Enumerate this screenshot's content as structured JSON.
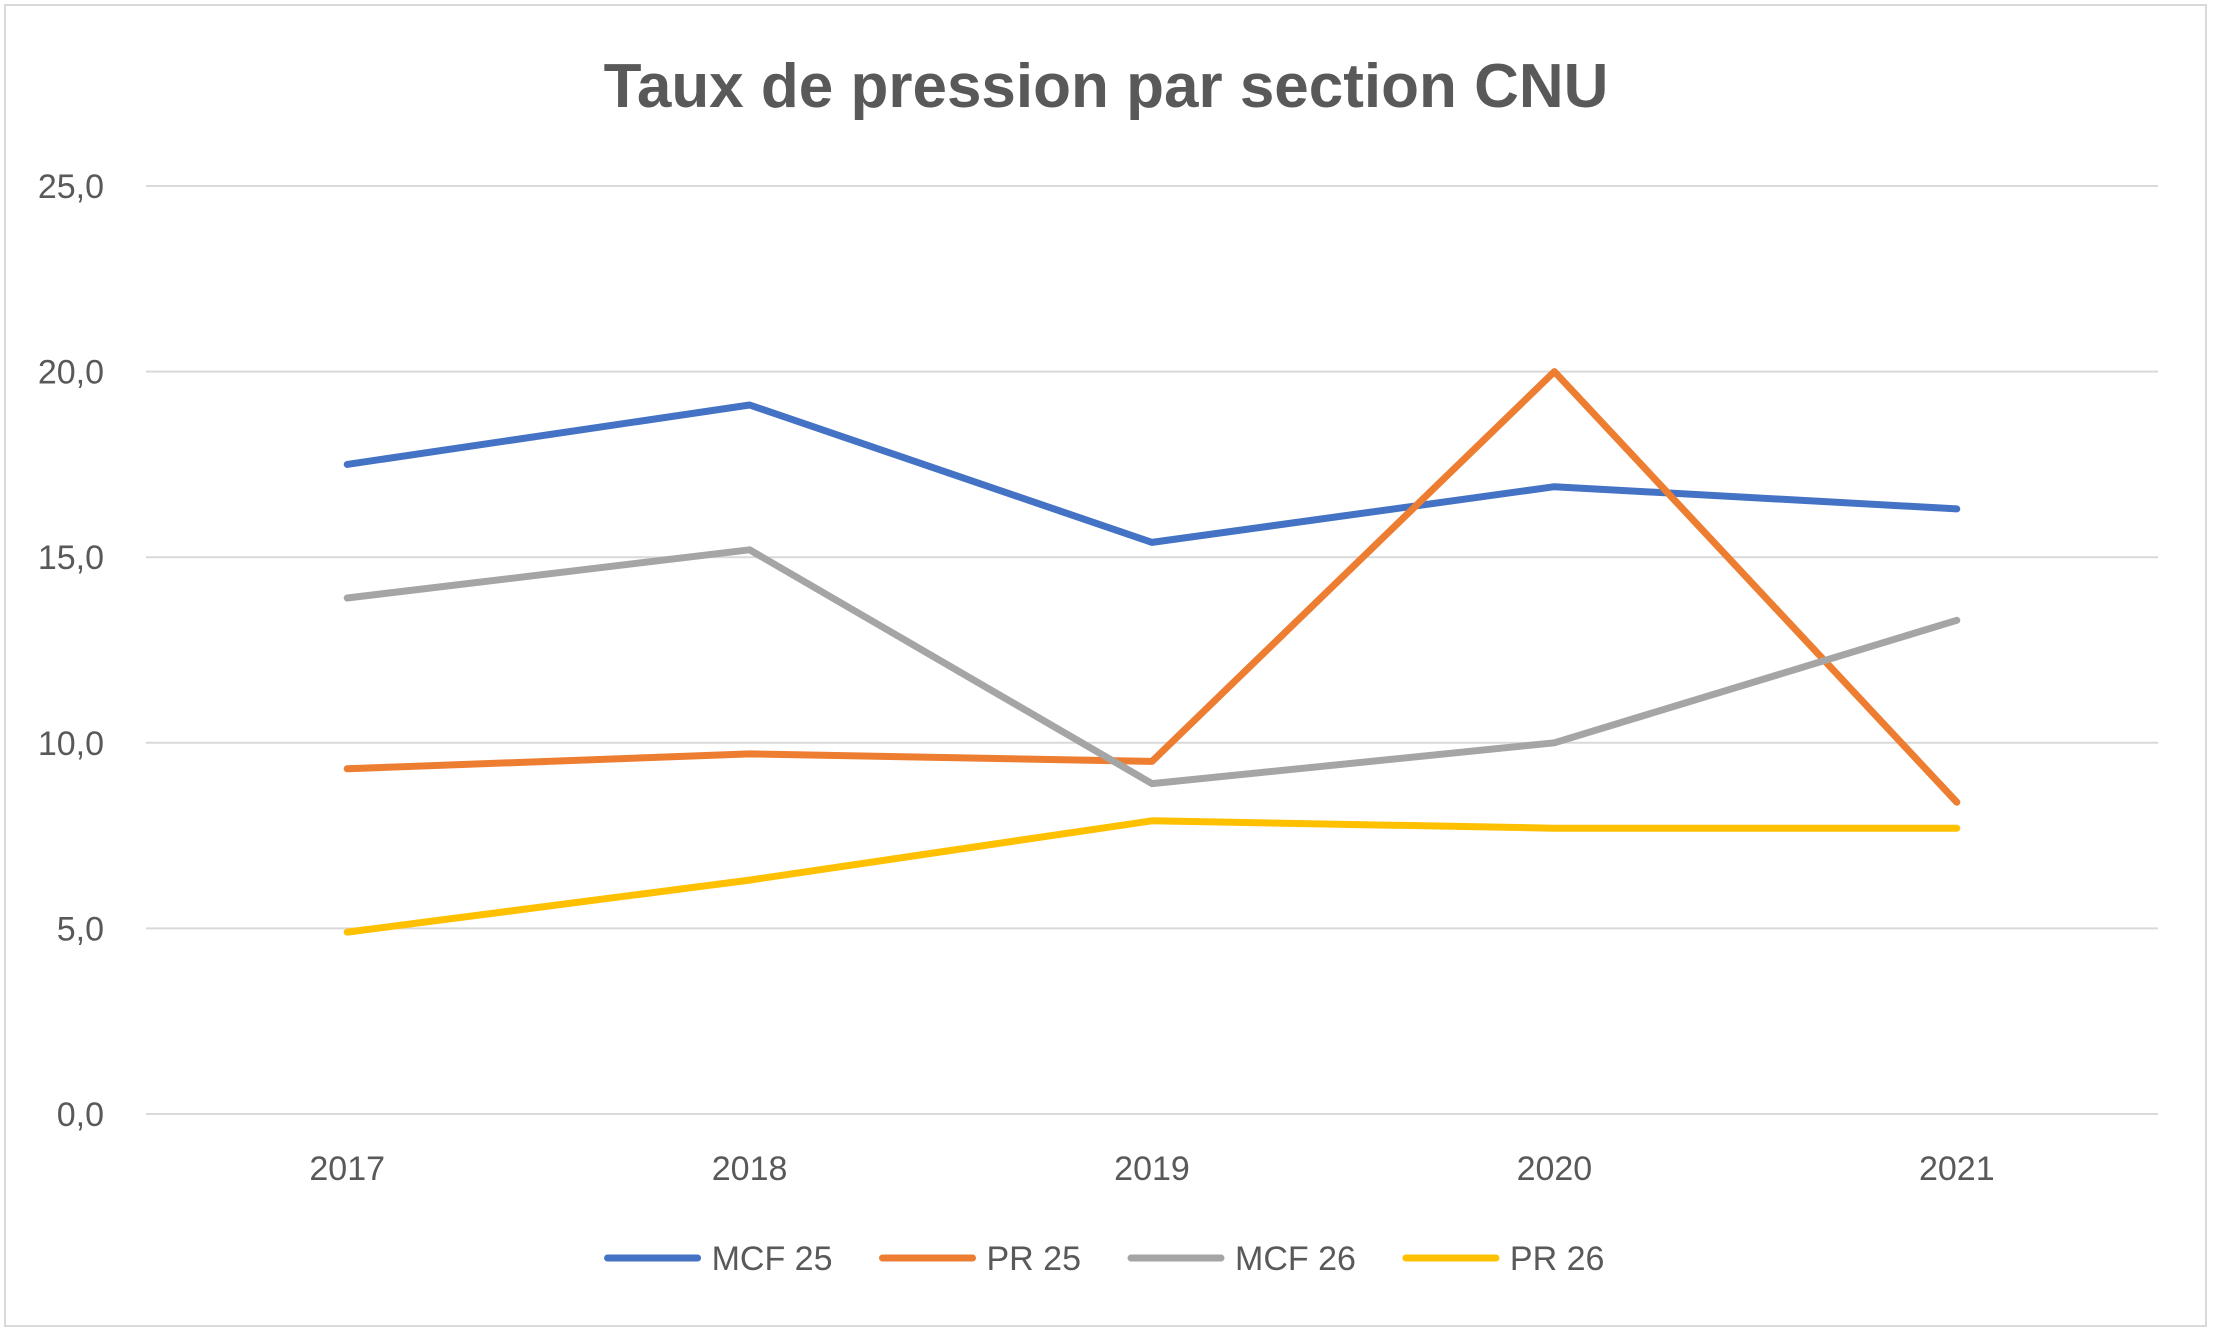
{
  "chart_data": {
    "type": "line",
    "title": "Taux de pression par section CNU",
    "xlabel": "",
    "ylabel": "",
    "categories": [
      "2017",
      "2018",
      "2019",
      "2020",
      "2021"
    ],
    "ylim": [
      0,
      25
    ],
    "yticks": [
      0,
      5,
      10,
      15,
      20,
      25
    ],
    "ytick_labels": [
      "0,0",
      "5,0",
      "10,0",
      "15,0",
      "20,0",
      "25,0"
    ],
    "grid": true,
    "legend_position": "bottom",
    "series": [
      {
        "name": "MCF 25",
        "color": "#4472c4",
        "values": [
          17.5,
          19.1,
          15.4,
          16.9,
          16.3
        ]
      },
      {
        "name": "PR 25",
        "color": "#ed7d31",
        "values": [
          9.3,
          9.7,
          9.5,
          20.0,
          8.4
        ]
      },
      {
        "name": "MCF 26",
        "color": "#a5a5a5",
        "values": [
          13.9,
          15.2,
          8.9,
          10.0,
          13.3
        ]
      },
      {
        "name": "PR 26",
        "color": "#ffc000",
        "values": [
          4.9,
          6.3,
          7.9,
          7.7,
          7.7
        ]
      }
    ]
  }
}
